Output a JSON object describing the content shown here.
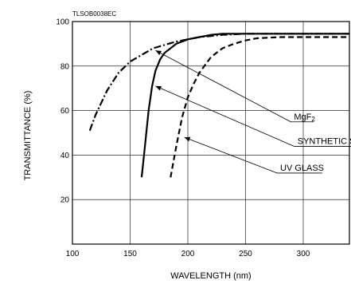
{
  "chart_data": {
    "type": "line",
    "code_label": "TLSOB0038EC",
    "xlabel": "WAVELENGTH (nm)",
    "ylabel": "TRANSMITTANCE (%)",
    "xlim": [
      100,
      340
    ],
    "ylim": [
      0,
      100
    ],
    "x_ticks": [
      "100",
      "150",
      "200",
      "250",
      "300"
    ],
    "x_tick_values": [
      100,
      150,
      200,
      250,
      300
    ],
    "y_ticks": [
      "20",
      "40",
      "60",
      "80",
      "100"
    ],
    "y_tick_values": [
      20,
      40,
      60,
      80,
      100
    ],
    "grid": true,
    "series": [
      {
        "name": "MgF2",
        "label_main": "MgF",
        "label_sub": "2",
        "style": "dash-dot",
        "points": [
          [
            115,
            51
          ],
          [
            120,
            58
          ],
          [
            130,
            69
          ],
          [
            140,
            77
          ],
          [
            150,
            82
          ],
          [
            160,
            85
          ],
          [
            170,
            88
          ],
          [
            180,
            89.5
          ],
          [
            190,
            91
          ],
          [
            200,
            92
          ],
          [
            210,
            93
          ],
          [
            220,
            93.5
          ],
          [
            230,
            94
          ],
          [
            250,
            94.5
          ],
          [
            300,
            94.5
          ],
          [
            340,
            94.5
          ]
        ]
      },
      {
        "name": "SYNTHETIC SILICA",
        "label_main": "SYNTHETIC SILICA",
        "label_sub": "",
        "style": "solid",
        "points": [
          [
            160,
            30
          ],
          [
            163,
            45
          ],
          [
            166,
            60
          ],
          [
            169,
            71
          ],
          [
            172,
            78
          ],
          [
            176,
            83
          ],
          [
            180,
            86
          ],
          [
            190,
            90
          ],
          [
            200,
            92
          ],
          [
            210,
            93
          ],
          [
            220,
            94
          ],
          [
            230,
            94.5
          ],
          [
            250,
            94.5
          ],
          [
            300,
            94.5
          ],
          [
            340,
            94.5
          ]
        ]
      },
      {
        "name": "UV GLASS",
        "label_main": "UV GLASS",
        "label_sub": "",
        "style": "dashed",
        "points": [
          [
            185,
            30
          ],
          [
            190,
            44
          ],
          [
            195,
            57
          ],
          [
            200,
            66
          ],
          [
            205,
            72
          ],
          [
            210,
            77
          ],
          [
            220,
            84
          ],
          [
            230,
            88
          ],
          [
            240,
            90
          ],
          [
            250,
            91.5
          ],
          [
            260,
            92.5
          ],
          [
            280,
            93
          ],
          [
            300,
            93
          ],
          [
            340,
            93
          ]
        ]
      }
    ],
    "annotations": [
      {
        "series": "MgF2",
        "label_x": 292,
        "label_y": 56,
        "point_x": 172,
        "point_y": 87
      },
      {
        "series": "SYNTHETIC SILICA",
        "label_x": 295,
        "label_y": 45,
        "point_x": 172,
        "point_y": 71
      },
      {
        "series": "UV GLASS",
        "label_x": 280,
        "label_y": 33,
        "point_x": 197,
        "point_y": 48
      }
    ]
  }
}
